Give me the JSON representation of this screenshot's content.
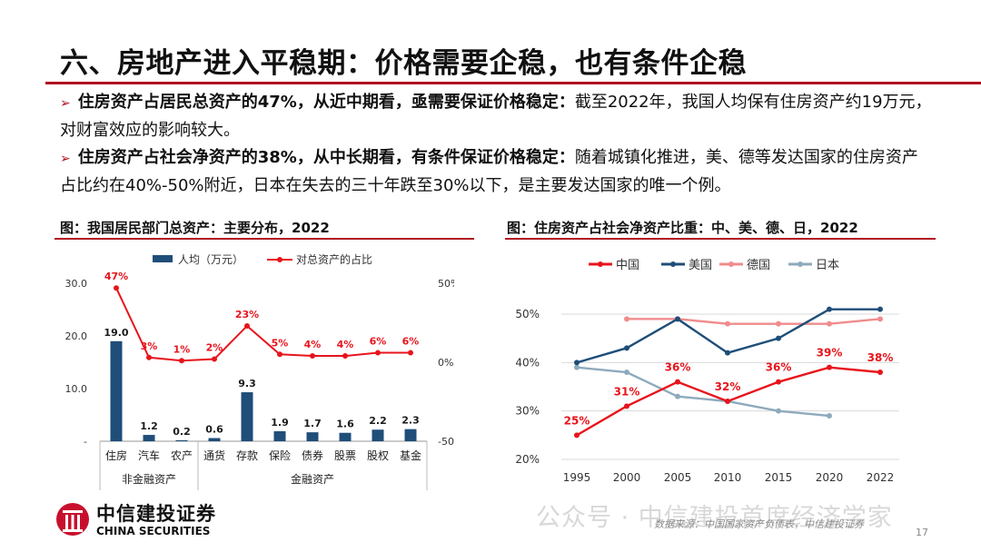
{
  "title": "六、房地产进入平稳期：价格需要企稳，也有条件企稳",
  "bullets": [
    {
      "bold": "住房资产占居民总资产的47%，从近中期看，亟需要保证价格稳定：",
      "text": "截至2022年，我国人均保有住房资产约19万元，对财富效应的影响较大。"
    },
    {
      "bold": "住房资产占社会净资产的38%，从中长期看，有条件保证价格稳定：",
      "text": "随着城镇化推进，美、德等发达国家的住房资产占比约在40%-50%附近，日本在失去的三十年跌至30%以下，是主要发达国家的唯一个例。"
    }
  ],
  "left_chart_title": "图：我国居民部门总资产：主要分布，2022",
  "right_chart_title": "图：住房资产占社会净资产比重：中、美、德、日，2022",
  "chart_data": [
    {
      "type": "bar",
      "categories": [
        "住房",
        "汽车",
        "农产",
        "通货",
        "存款",
        "保险",
        "债券",
        "股票",
        "股权",
        "基金"
      ],
      "groups": [
        {
          "label": "非金融资产",
          "from": 0,
          "to": 2
        },
        {
          "label": "金融资产",
          "from": 3,
          "to": 9
        }
      ],
      "series": [
        {
          "name": "人均（万元）",
          "kind": "bar",
          "axis": "left",
          "color": "#1f4e79",
          "values": [
            19.0,
            1.2,
            0.2,
            0.6,
            9.3,
            1.9,
            1.7,
            1.6,
            2.2,
            2.3
          ],
          "labels": [
            "19.0",
            "1.2",
            "0.2",
            "0.6",
            "9.3",
            "1.9",
            "1.7",
            "1.6",
            "2.2",
            "2.3"
          ]
        },
        {
          "name": "对总资产的占比",
          "kind": "line",
          "axis": "right",
          "color": "#e8141c",
          "values": [
            47,
            3,
            1,
            2,
            23,
            5,
            4,
            4,
            6,
            6
          ],
          "labels": [
            "47%",
            "3%",
            "1%",
            "2%",
            "23%",
            "5%",
            "4%",
            "4%",
            "6%",
            "6%"
          ]
        }
      ],
      "left_axis": {
        "ylim": [
          0,
          30
        ],
        "ticks": [
          "-",
          "10.0",
          "20.0",
          "30.0"
        ]
      },
      "right_axis": {
        "ylim": [
          -50,
          50
        ],
        "ticks": [
          "-50%",
          "0%",
          "50%"
        ]
      },
      "legend": "top"
    },
    {
      "type": "line",
      "x": [
        "1995",
        "2000",
        "2005",
        "2010",
        "2015",
        "2020",
        "2022"
      ],
      "ylim": [
        20,
        50
      ],
      "yticks": [
        "20%",
        "30%",
        "40%",
        "50%"
      ],
      "series": [
        {
          "name": "中国",
          "color": "#e8141c",
          "values": [
            25,
            31,
            36,
            32,
            36,
            39,
            38
          ],
          "labels": [
            "25%",
            "31%",
            "36%",
            "32%",
            "36%",
            "39%",
            "38%"
          ]
        },
        {
          "name": "美国",
          "color": "#1f4e79",
          "values": [
            40,
            43,
            49,
            42,
            45,
            51,
            51
          ]
        },
        {
          "name": "德国",
          "color": "#f08c8c",
          "values": [
            null,
            49,
            49,
            48,
            48,
            48,
            49
          ]
        },
        {
          "name": "日本",
          "color": "#8eaabd",
          "values": [
            39,
            38,
            33,
            32,
            30,
            29,
            null
          ]
        }
      ],
      "legend": "top"
    }
  ],
  "footer": {
    "logo_cn": "中信建投证券",
    "logo_en": "CHINA SECURITIES",
    "watermark": "公众号 · 中信建投首席经济学家",
    "source": "数据来源：中国国家资产负债表，中信建投证券",
    "page": "17"
  }
}
